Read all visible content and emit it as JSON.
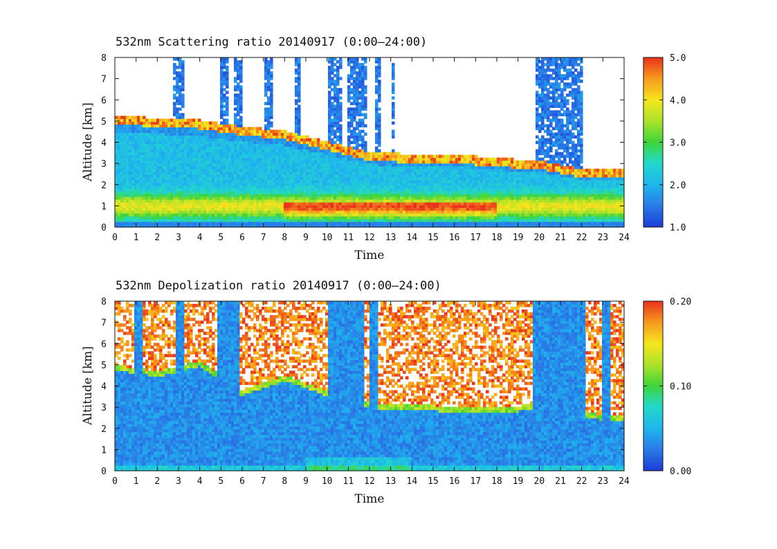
{
  "chart_data": [
    {
      "type": "heatmap",
      "title": "532nm Scattering ratio  20140917 (0:00–24:00)",
      "xlabel": "Time",
      "ylabel": "Altitude [km]",
      "xlim": [
        0,
        24
      ],
      "ylim": [
        0,
        8
      ],
      "x_ticks": [
        0,
        1,
        2,
        3,
        4,
        5,
        6,
        7,
        8,
        9,
        10,
        11,
        12,
        13,
        14,
        15,
        16,
        17,
        18,
        19,
        20,
        21,
        22,
        23,
        24
      ],
      "y_ticks": [
        0,
        1,
        2,
        3,
        4,
        5,
        6,
        7,
        8
      ],
      "colorbar": {
        "min": 1.0,
        "max": 5.0,
        "tick_labels": [
          "1.0",
          "2.0",
          "3.0",
          "4.0",
          "5.0"
        ]
      },
      "features": {
        "mixed_layer_top_km": 4.4,
        "aerosol_layer_max_km": 1.0,
        "cloud_base_km": [
          {
            "t": 0,
            "z": 5.0
          },
          {
            "t": 2,
            "z": 4.9
          },
          {
            "t": 4,
            "z": 4.8
          },
          {
            "t": 6,
            "z": 4.5
          },
          {
            "t": 8,
            "z": 4.3
          },
          {
            "t": 10,
            "z": 3.8
          },
          {
            "t": 12,
            "z": 3.3
          },
          {
            "t": 14,
            "z": 3.2
          },
          {
            "t": 16,
            "z": 3.2
          },
          {
            "t": 18,
            "z": 3.0
          },
          {
            "t": 20,
            "z": 2.9
          },
          {
            "t": 22,
            "z": 2.5
          },
          {
            "t": 24,
            "z": 2.5
          }
        ]
      }
    },
    {
      "type": "heatmap",
      "title": "532nm Depolization ratio  20140917 (0:00–24:00)",
      "xlabel": "Time",
      "ylabel": "Altitude [km]",
      "xlim": [
        0,
        24
      ],
      "ylim": [
        0,
        8
      ],
      "x_ticks": [
        0,
        1,
        2,
        3,
        4,
        5,
        6,
        7,
        8,
        9,
        10,
        11,
        12,
        13,
        14,
        15,
        16,
        17,
        18,
        19,
        20,
        21,
        22,
        23,
        24
      ],
      "y_ticks": [
        0,
        1,
        2,
        3,
        4,
        5,
        6,
        7,
        8
      ],
      "colorbar": {
        "min": 0.0,
        "max": 0.2,
        "tick_labels": [
          "0.00",
          "0.10",
          "0.20"
        ]
      },
      "features": {
        "high_depolarization_layer_base_km": [
          {
            "t": 0,
            "z": 5.0
          },
          {
            "t": 2,
            "z": 4.7
          },
          {
            "t": 4,
            "z": 5.2
          },
          {
            "t": 6,
            "z": 3.8
          },
          {
            "t": 8,
            "z": 4.5
          },
          {
            "t": 10,
            "z": 3.8
          },
          {
            "t": 12,
            "z": 3.2
          },
          {
            "t": 14,
            "z": 3.2
          },
          {
            "t": 16,
            "z": 3.0
          },
          {
            "t": 18,
            "z": 3.0
          },
          {
            "t": 19.5,
            "z": 3.1
          },
          {
            "t": 22.5,
            "z": 2.7
          },
          {
            "t": 24,
            "z": 2.6
          }
        ]
      }
    }
  ]
}
